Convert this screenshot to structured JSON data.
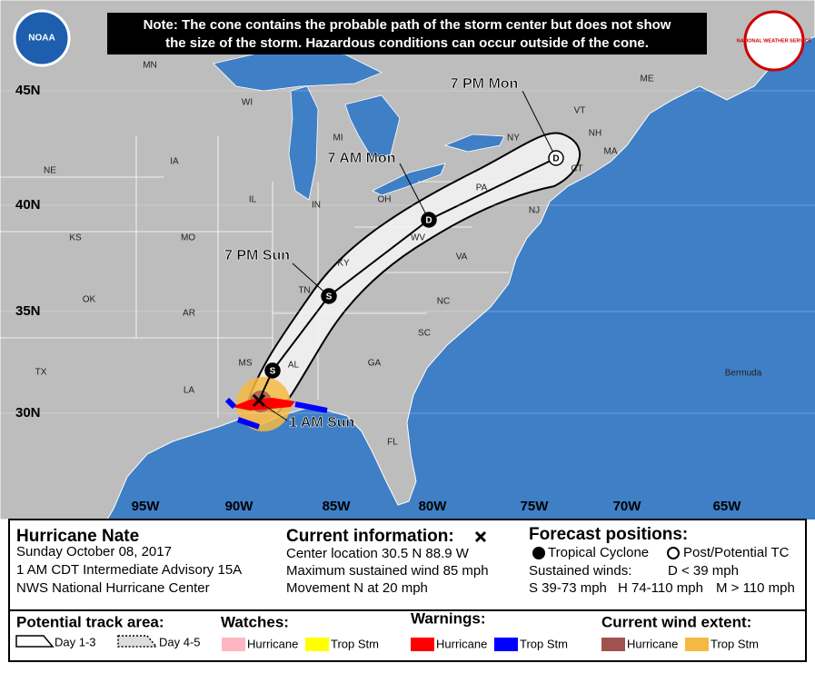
{
  "note": [
    "Note: The cone contains the probable path of the storm center but does not show",
    "the size of the storm. Hazardous conditions can occur outside of the cone."
  ],
  "latitude_labels": [
    "45N",
    "40N",
    "35N",
    "30N"
  ],
  "longitude_labels": [
    "95W",
    "90W",
    "85W",
    "80W",
    "75W",
    "70W",
    "65W"
  ],
  "place_labels": [
    "MN",
    "WI",
    "MI",
    "IA",
    "NE",
    "IL",
    "IN",
    "OH",
    "KS",
    "MO",
    "KY",
    "WV",
    "VA",
    "OK",
    "AR",
    "TN",
    "NC",
    "SC",
    "MS",
    "AL",
    "GA",
    "LA",
    "TX",
    "FL",
    "PA",
    "NY",
    "ME",
    "VT",
    "NH",
    "MA",
    "CT",
    "NJ",
    "Bermuda"
  ],
  "forecast_times": [
    "1 AM Sun",
    "7 PM Sun",
    "7 AM Mon",
    "7 PM Mon"
  ],
  "track_markers": [
    "S",
    "S",
    "D",
    "D"
  ],
  "storm": {
    "name": "Hurricane Nate",
    "date": "Sunday October 08, 2017",
    "advisory": "1 AM CDT Intermediate Advisory 15A",
    "center": "NWS National Hurricane Center"
  },
  "current_info": {
    "title": "Current information:",
    "center_location": "Center location 30.5 N 88.9 W",
    "max_wind": "Maximum sustained wind 85 mph",
    "movement": "Movement N at 20 mph"
  },
  "forecast_positions": {
    "title": "Forecast positions:",
    "tropical": "Tropical Cyclone",
    "post": "Post/Potential TC",
    "sustained": "Sustained winds:",
    "d": "D < 39 mph",
    "s": "S 39-73 mph",
    "h": "H 74-110 mph",
    "m": "M > 110 mph"
  },
  "legend": {
    "track_title": "Potential track area:",
    "day13": "Day 1-3",
    "day45": "Day 4-5",
    "watches": "Watches:",
    "watch_items": [
      "Hurricane",
      "Trop Stm"
    ],
    "warnings": "Warnings:",
    "warning_items": [
      "Hurricane",
      "Trop Stm"
    ],
    "wind": "Current wind extent:",
    "wind_items": [
      "Hurricane",
      "Trop Stm"
    ]
  },
  "logos": {
    "noaa": "NOAA",
    "nws": "NATIONAL WEATHER SERVICE"
  }
}
